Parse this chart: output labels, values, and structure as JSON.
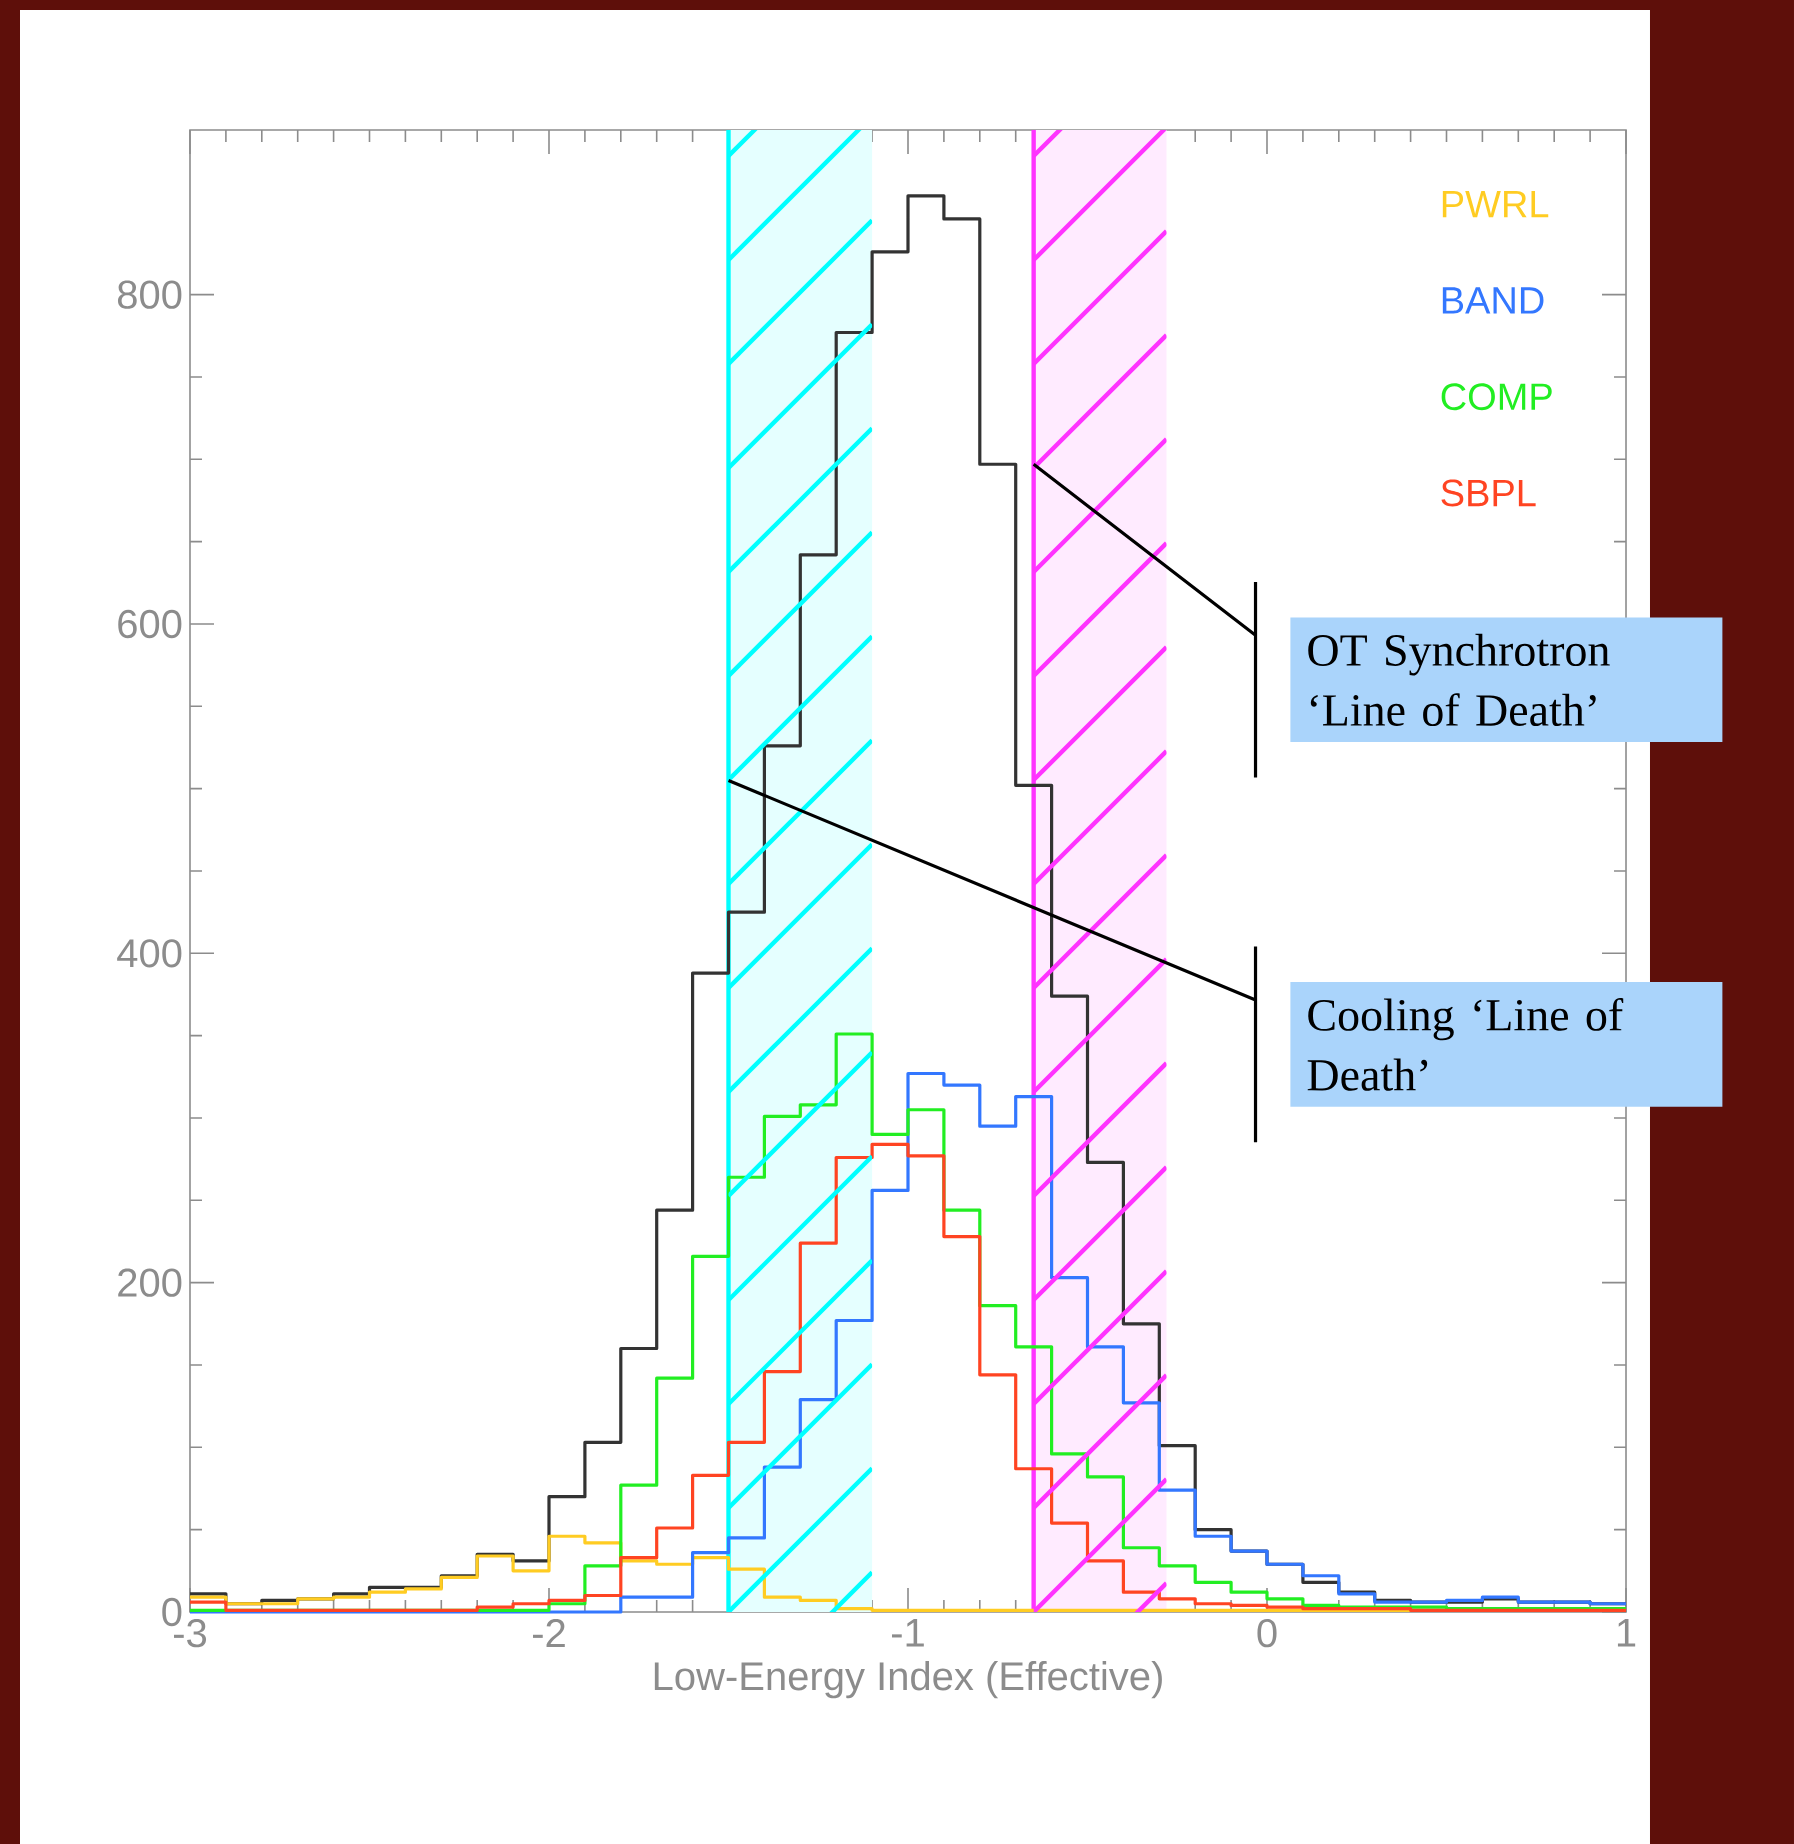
{
  "chart_data": {
    "type": "histogram",
    "xlabel": "Low-Energy Index (Effective)",
    "bins": [
      -3.0,
      -2.9,
      -2.8,
      -2.7,
      -2.6,
      -2.5,
      -2.4,
      -2.3,
      -2.2,
      -2.1,
      -2.0,
      -1.9,
      -1.8,
      -1.7,
      -1.6,
      -1.5,
      -1.4,
      -1.3,
      -1.2,
      -1.1,
      -1.0,
      -0.9,
      -0.8,
      -0.7,
      -0.6,
      -0.5,
      -0.4,
      -0.3,
      -0.2,
      -0.1,
      0.0,
      0.1,
      0.2,
      0.3,
      0.4,
      0.5,
      0.6,
      0.7,
      0.8,
      0.9,
      1.0
    ],
    "series": [
      {
        "color": "#333333",
        "values": [
          11,
          5,
          7,
          8,
          11,
          15,
          15,
          22,
          35,
          31,
          70,
          103,
          160,
          244,
          388,
          425,
          526,
          642,
          777,
          826,
          860,
          846,
          697,
          502,
          374,
          273,
          175,
          101,
          50,
          37,
          29,
          18,
          12,
          7,
          6,
          6,
          8,
          6,
          6,
          5
        ]
      },
      {
        "name": "PWRL",
        "color": "#ffcc22",
        "values": [
          9,
          5,
          5,
          8,
          9,
          12,
          14,
          21,
          34,
          25,
          46,
          42,
          31,
          29,
          33,
          26,
          9,
          7,
          2,
          1,
          1,
          1,
          1,
          1,
          1,
          1,
          1,
          1,
          1,
          1,
          1,
          1,
          1,
          1,
          1,
          1,
          1,
          1,
          1,
          1
        ]
      },
      {
        "name": "BAND",
        "color": "#3377ff",
        "values": [
          0,
          0,
          0,
          0,
          0,
          0,
          0,
          0,
          0,
          0,
          0,
          0,
          9,
          9,
          36,
          45,
          88,
          129,
          177,
          256,
          327,
          320,
          295,
          313,
          203,
          161,
          127,
          74,
          46,
          37,
          29,
          22,
          11,
          6,
          6,
          7,
          9,
          6,
          6,
          5
        ]
      },
      {
        "name": "COMP",
        "color": "#22ee22",
        "values": [
          1,
          1,
          1,
          1,
          1,
          1,
          1,
          1,
          1,
          1,
          5,
          28,
          77,
          142,
          216,
          264,
          301,
          308,
          351,
          290,
          305,
          244,
          186,
          161,
          96,
          82,
          39,
          28,
          18,
          12,
          8,
          4,
          3,
          3,
          3,
          2,
          2,
          2,
          2,
          2
        ]
      },
      {
        "name": "SBPL",
        "color": "#ff4422",
        "values": [
          6,
          1,
          1,
          1,
          1,
          1,
          1,
          1,
          3,
          5,
          7,
          10,
          33,
          51,
          83,
          103,
          146,
          224,
          276,
          284,
          277,
          228,
          144,
          87,
          54,
          31,
          12,
          8,
          5,
          4,
          3,
          2,
          2,
          2,
          1,
          1,
          1,
          1,
          1,
          1
        ]
      }
    ],
    "xlim": [
      -3,
      1
    ],
    "ylim": [
      0,
      900
    ],
    "xticks": [
      -3,
      -2,
      -1,
      0,
      1
    ],
    "yticks": [
      0,
      200,
      400,
      600,
      800
    ],
    "bands": [
      {
        "axis": "x",
        "from": -1.5,
        "to": -1.1,
        "color": "#e5ffff"
      },
      {
        "axis": "x",
        "from": -0.65,
        "to": -0.28,
        "color": "#ffebff"
      }
    ],
    "ref_lines": [
      {
        "axis": "x",
        "value": -1.5,
        "color": "#00ffff"
      },
      {
        "axis": "x",
        "value": -0.65,
        "color": "#ff33ff"
      }
    ],
    "annotations": [
      {
        "text": "OT Synchrotron ‘Line of Death’",
        "x": -0.65,
        "y": 697
      },
      {
        "text": "Cooling ‘Line of Death’",
        "x": -1.5,
        "y": 505
      }
    ],
    "legend": "top right"
  }
}
